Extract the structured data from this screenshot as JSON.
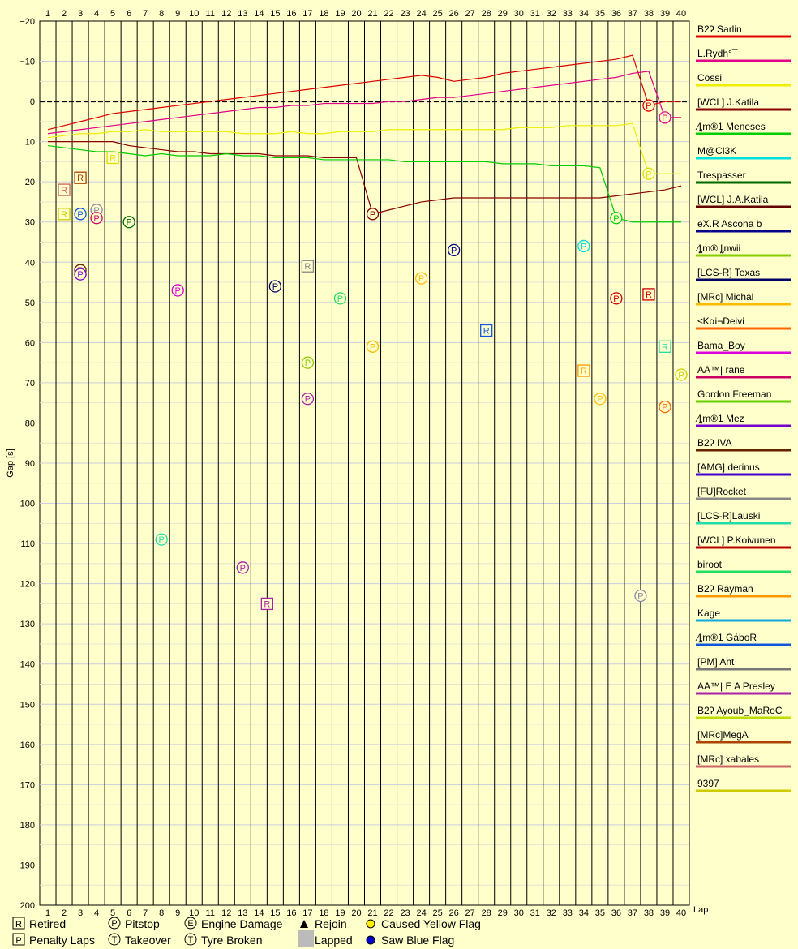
{
  "chart_data": {
    "type": "line",
    "ylabel": "Gap [s]",
    "xlabel": "Lap",
    "x_range": [
      1,
      40
    ],
    "y_range": [
      -20,
      200
    ],
    "y_ticks": [
      -20,
      -10,
      0,
      10,
      20,
      30,
      40,
      50,
      60,
      70,
      80,
      90,
      100,
      110,
      120,
      130,
      140,
      150,
      160,
      170,
      180,
      190,
      200
    ],
    "y_tick_labels": [
      "−20",
      "−10",
      "0",
      "10",
      "20",
      "30",
      "40",
      "50",
      "60",
      "70",
      "80",
      "90",
      "100",
      "110",
      "120",
      "130",
      "140",
      "150",
      "160",
      "170",
      "180",
      "190",
      "200"
    ],
    "laps": [
      1,
      2,
      3,
      4,
      5,
      6,
      7,
      8,
      9,
      10,
      11,
      12,
      13,
      14,
      15,
      16,
      17,
      18,
      19,
      20,
      21,
      22,
      23,
      24,
      25,
      26,
      27,
      28,
      29,
      30,
      31,
      32,
      33,
      34,
      35,
      36,
      37,
      38,
      39,
      40
    ],
    "grid": true,
    "series": [
      {
        "name": "B2ʔ Sarlin",
        "color": "#dd0000",
        "values": [
          7,
          6,
          5,
          4,
          3,
          2.5,
          2,
          1.5,
          1,
          0.5,
          0,
          -0.5,
          -1,
          -1.5,
          -2,
          -2.5,
          -3,
          -3.5,
          -4,
          -4.5,
          -5,
          -5.5,
          -6,
          -6.5,
          -6,
          -5,
          -5.5,
          -6,
          -7,
          -7.5,
          -8,
          -8.5,
          -9,
          -9.5,
          -10,
          -10.5,
          -11.5,
          1,
          0,
          0
        ]
      },
      {
        "name": "L.Rydh°¯",
        "color": "#e0008a",
        "values": [
          8,
          7.5,
          7,
          6.5,
          6,
          5.5,
          5,
          4.5,
          4,
          3.5,
          3,
          2.5,
          2,
          1.5,
          1.5,
          1,
          1,
          0.5,
          0.5,
          0.5,
          0.5,
          0,
          0,
          -0.5,
          -1,
          -1,
          -1.5,
          -2,
          -2.5,
          -3,
          -3.5,
          -4,
          -4.5,
          -5,
          -5.5,
          -6,
          -7,
          -7.5,
          4,
          4
        ]
      },
      {
        "name": "Cossi",
        "color": "#eeee00",
        "values": [
          9,
          8.5,
          8,
          8,
          7.5,
          7.5,
          7,
          7.5,
          7.5,
          7.5,
          7.5,
          7.5,
          8,
          8,
          8,
          7.5,
          8,
          8,
          7.5,
          7.5,
          7.5,
          7,
          7,
          7,
          7,
          7,
          7,
          7,
          7,
          6.5,
          6.5,
          6.5,
          6,
          6,
          6,
          6,
          5.5,
          18,
          18,
          18
        ]
      },
      {
        "name": "[WCL] J.Katila",
        "color": "#880000",
        "values": [
          10,
          10,
          10,
          10,
          10,
          11,
          11.5,
          12,
          12.5,
          12.5,
          13,
          13,
          13,
          13,
          13.5,
          13.5,
          13.5,
          14,
          14,
          14,
          28,
          27,
          26,
          25,
          24.5,
          24,
          24,
          24,
          24,
          24,
          24,
          24,
          24,
          24,
          24,
          23.5,
          23,
          22.5,
          22,
          21
        ]
      },
      {
        "name": "⁄ȴm®1 Meneses",
        "color": "#00cc00",
        "values": [
          11,
          11.5,
          12,
          12.5,
          12.5,
          13,
          13.5,
          13,
          13.5,
          13.5,
          13.5,
          13,
          13.5,
          13.5,
          14,
          14,
          14,
          14.5,
          14.5,
          14.5,
          14.5,
          14.5,
          15,
          15,
          15,
          15,
          15,
          15,
          15.5,
          15.5,
          15.5,
          16,
          16,
          16,
          16.5,
          29,
          30,
          30,
          30,
          30
        ]
      }
    ],
    "legend_entries": [
      {
        "name": "B2ʔ Sarlin",
        "color": "#dd0000"
      },
      {
        "name": "L.Rydh°¯",
        "color": "#e0008a"
      },
      {
        "name": "Cossi",
        "color": "#eeee00"
      },
      {
        "name": "[WCL] J.Katila",
        "color": "#880000"
      },
      {
        "name": "⁄ȴm®1 Meneses",
        "color": "#00cc00"
      },
      {
        "name": "M@Cl3K",
        "color": "#00dddd"
      },
      {
        "name": "Trespasser",
        "color": "#006600"
      },
      {
        "name": "[WCL] J.A.Katila",
        "color": "#660000"
      },
      {
        "name": "eX.R Ascona b",
        "color": "#000088"
      },
      {
        "name": "⁄ȴm® ȴnwii",
        "color": "#88cc00"
      },
      {
        "name": "[LCS-R] Texas",
        "color": "#000066"
      },
      {
        "name": "[MRc] Michal",
        "color": "#ffbb00"
      },
      {
        "name": "≤Kαi¬Deivi",
        "color": "#ff6600"
      },
      {
        "name": "Bama_Boy",
        "color": "#dd00dd"
      },
      {
        "name": "AA™| rane",
        "color": "#cc0066"
      },
      {
        "name": "Gordon Freeman",
        "color": "#66cc00"
      },
      {
        "name": "⁄ȴm®1 Mez",
        "color": "#7700cc"
      },
      {
        "name": "B2ʔ IVA",
        "color": "#662200"
      },
      {
        "name": "[AMG] derinus",
        "color": "#4400cc"
      },
      {
        "name": "[FU]Rocket",
        "color": "#888888"
      },
      {
        "name": "[LCS-R]Lauski",
        "color": "#22ddaa"
      },
      {
        "name": "[WCL] P.Koivunen",
        "color": "#bb0000"
      },
      {
        "name": "biroot",
        "color": "#22dd66"
      },
      {
        "name": "B2ʔ Rayman",
        "color": "#ff9900"
      },
      {
        "name": "Kage",
        "color": "#11aadd"
      },
      {
        "name": "⁄ȴm®1 GáboR",
        "color": "#1155dd"
      },
      {
        "name": "[PM] Ant",
        "color": "#777777"
      },
      {
        "name": "AA™| E A Presley",
        "color": "#aa22aa"
      },
      {
        "name": "B2ʔ Ayoub_MaRoC",
        "color": "#bbdd00"
      },
      {
        "name": "[MRc]MegA",
        "color": "#aa4400"
      },
      {
        "name": "[MRc] xabales",
        "color": "#cc6666"
      },
      {
        "name": "9397",
        "color": "#cccc00"
      }
    ],
    "markers": [
      {
        "letter": "P",
        "lap": 38,
        "gap": 1,
        "color": "#dd0000",
        "kind": "circle"
      },
      {
        "letter": "P",
        "lap": 39,
        "gap": 4,
        "color": "#e0008a",
        "kind": "circle"
      },
      {
        "letter": "P",
        "lap": 38,
        "gap": 18,
        "color": "#dddd00",
        "kind": "circle"
      },
      {
        "letter": "P",
        "lap": 21,
        "gap": 28,
        "color": "#880000",
        "kind": "circle"
      },
      {
        "letter": "P",
        "lap": 36,
        "gap": 29,
        "color": "#00cc00",
        "kind": "circle"
      },
      {
        "letter": "P",
        "lap": 34,
        "gap": 36,
        "color": "#00dddd",
        "kind": "circle"
      },
      {
        "letter": "P",
        "lap": 6,
        "gap": 30,
        "color": "#006600",
        "kind": "circle"
      },
      {
        "letter": "P",
        "lap": 26,
        "gap": 37,
        "color": "#000088",
        "kind": "circle"
      },
      {
        "letter": "P",
        "lap": 15,
        "gap": 46,
        "color": "#000066",
        "kind": "circle"
      },
      {
        "letter": "P",
        "lap": 24,
        "gap": 44,
        "color": "#ffbb00",
        "kind": "circle"
      },
      {
        "letter": "P",
        "lap": 36,
        "gap": 49,
        "color": "#cc0000",
        "kind": "circle"
      },
      {
        "letter": "R",
        "lap": 38,
        "gap": 48,
        "color": "#cc0000",
        "kind": "square"
      },
      {
        "letter": "P",
        "lap": 9,
        "gap": 47,
        "color": "#dd00dd",
        "kind": "circle"
      },
      {
        "letter": "P",
        "lap": 19,
        "gap": 49,
        "color": "#22dd66",
        "kind": "circle"
      },
      {
        "letter": "R",
        "lap": 28,
        "gap": 57,
        "color": "#1155dd",
        "kind": "square"
      },
      {
        "letter": "R",
        "lap": 17,
        "gap": 41,
        "color": "#888888",
        "kind": "square"
      },
      {
        "letter": "P",
        "lap": 21,
        "gap": 61,
        "color": "#ffbb00",
        "kind": "circle"
      },
      {
        "letter": "R",
        "lap": 39,
        "gap": 61,
        "color": "#22ddaa",
        "kind": "square"
      },
      {
        "letter": "P",
        "lap": 17,
        "gap": 65,
        "color": "#88cc00",
        "kind": "circle"
      },
      {
        "letter": "R",
        "lap": 34,
        "gap": 67,
        "color": "#ff9900",
        "kind": "square"
      },
      {
        "letter": "P",
        "lap": 40,
        "gap": 68,
        "color": "#cccc00",
        "kind": "circle"
      },
      {
        "letter": "P",
        "lap": 17,
        "gap": 74,
        "color": "#aa22aa",
        "kind": "circle"
      },
      {
        "letter": "P",
        "lap": 35,
        "gap": 74,
        "color": "#ffbb00",
        "kind": "circle"
      },
      {
        "letter": "P",
        "lap": 39,
        "gap": 76,
        "color": "#ff6600",
        "kind": "circle"
      },
      {
        "letter": "P",
        "lap": 8,
        "gap": 109,
        "color": "#22ddaa",
        "kind": "circle"
      },
      {
        "letter": "P",
        "lap": 13,
        "gap": 116,
        "color": "#aa22aa",
        "kind": "circle"
      },
      {
        "letter": "R",
        "lap": 14.5,
        "gap": 125,
        "color": "#aa22aa",
        "kind": "square"
      },
      {
        "letter": "P",
        "lap": 37.5,
        "gap": 123,
        "color": "#8888aa",
        "kind": "circle"
      },
      {
        "letter": "R",
        "lap": 2,
        "gap": 22,
        "color": "#cc6666",
        "kind": "square"
      },
      {
        "letter": "R",
        "lap": 3,
        "gap": 19,
        "color": "#aa4400",
        "kind": "square"
      },
      {
        "letter": "R",
        "lap": 2,
        "gap": 28,
        "color": "#cccc00",
        "kind": "square"
      },
      {
        "letter": "R",
        "lap": 5,
        "gap": 14,
        "color": "#dddd00",
        "kind": "square"
      },
      {
        "letter": "P",
        "lap": 3,
        "gap": 28,
        "color": "#1155dd",
        "kind": "circle"
      },
      {
        "letter": "P",
        "lap": 4,
        "gap": 27,
        "color": "#8888aa",
        "kind": "circle"
      },
      {
        "letter": "P",
        "lap": 4,
        "gap": 29,
        "color": "#cc0066",
        "kind": "circle"
      },
      {
        "letter": "P",
        "lap": 3,
        "gap": 42,
        "color": "#662200",
        "kind": "circle"
      },
      {
        "letter": "P",
        "lap": 3,
        "gap": 43,
        "color": "#7700cc",
        "kind": "circle"
      }
    ],
    "legend_bottom": [
      {
        "symbol": "R",
        "label": "Retired"
      },
      {
        "symbol": "P",
        "label": "Pitstop"
      },
      {
        "symbol": "E",
        "label": "Engine Damage"
      },
      {
        "symbol": "▲",
        "label": "Rejoin"
      },
      {
        "symbol": "●",
        "label": "Caused Yellow Flag"
      },
      {
        "symbol": "P",
        "label": "Penalty Laps"
      },
      {
        "symbol": "T",
        "label": "Takeover"
      },
      {
        "symbol": "⌂",
        "label": "Tyre Broken"
      },
      {
        "symbol": "■",
        "label": "Lapped"
      },
      {
        "symbol": "●",
        "label": "Saw Blue Flag"
      }
    ]
  }
}
